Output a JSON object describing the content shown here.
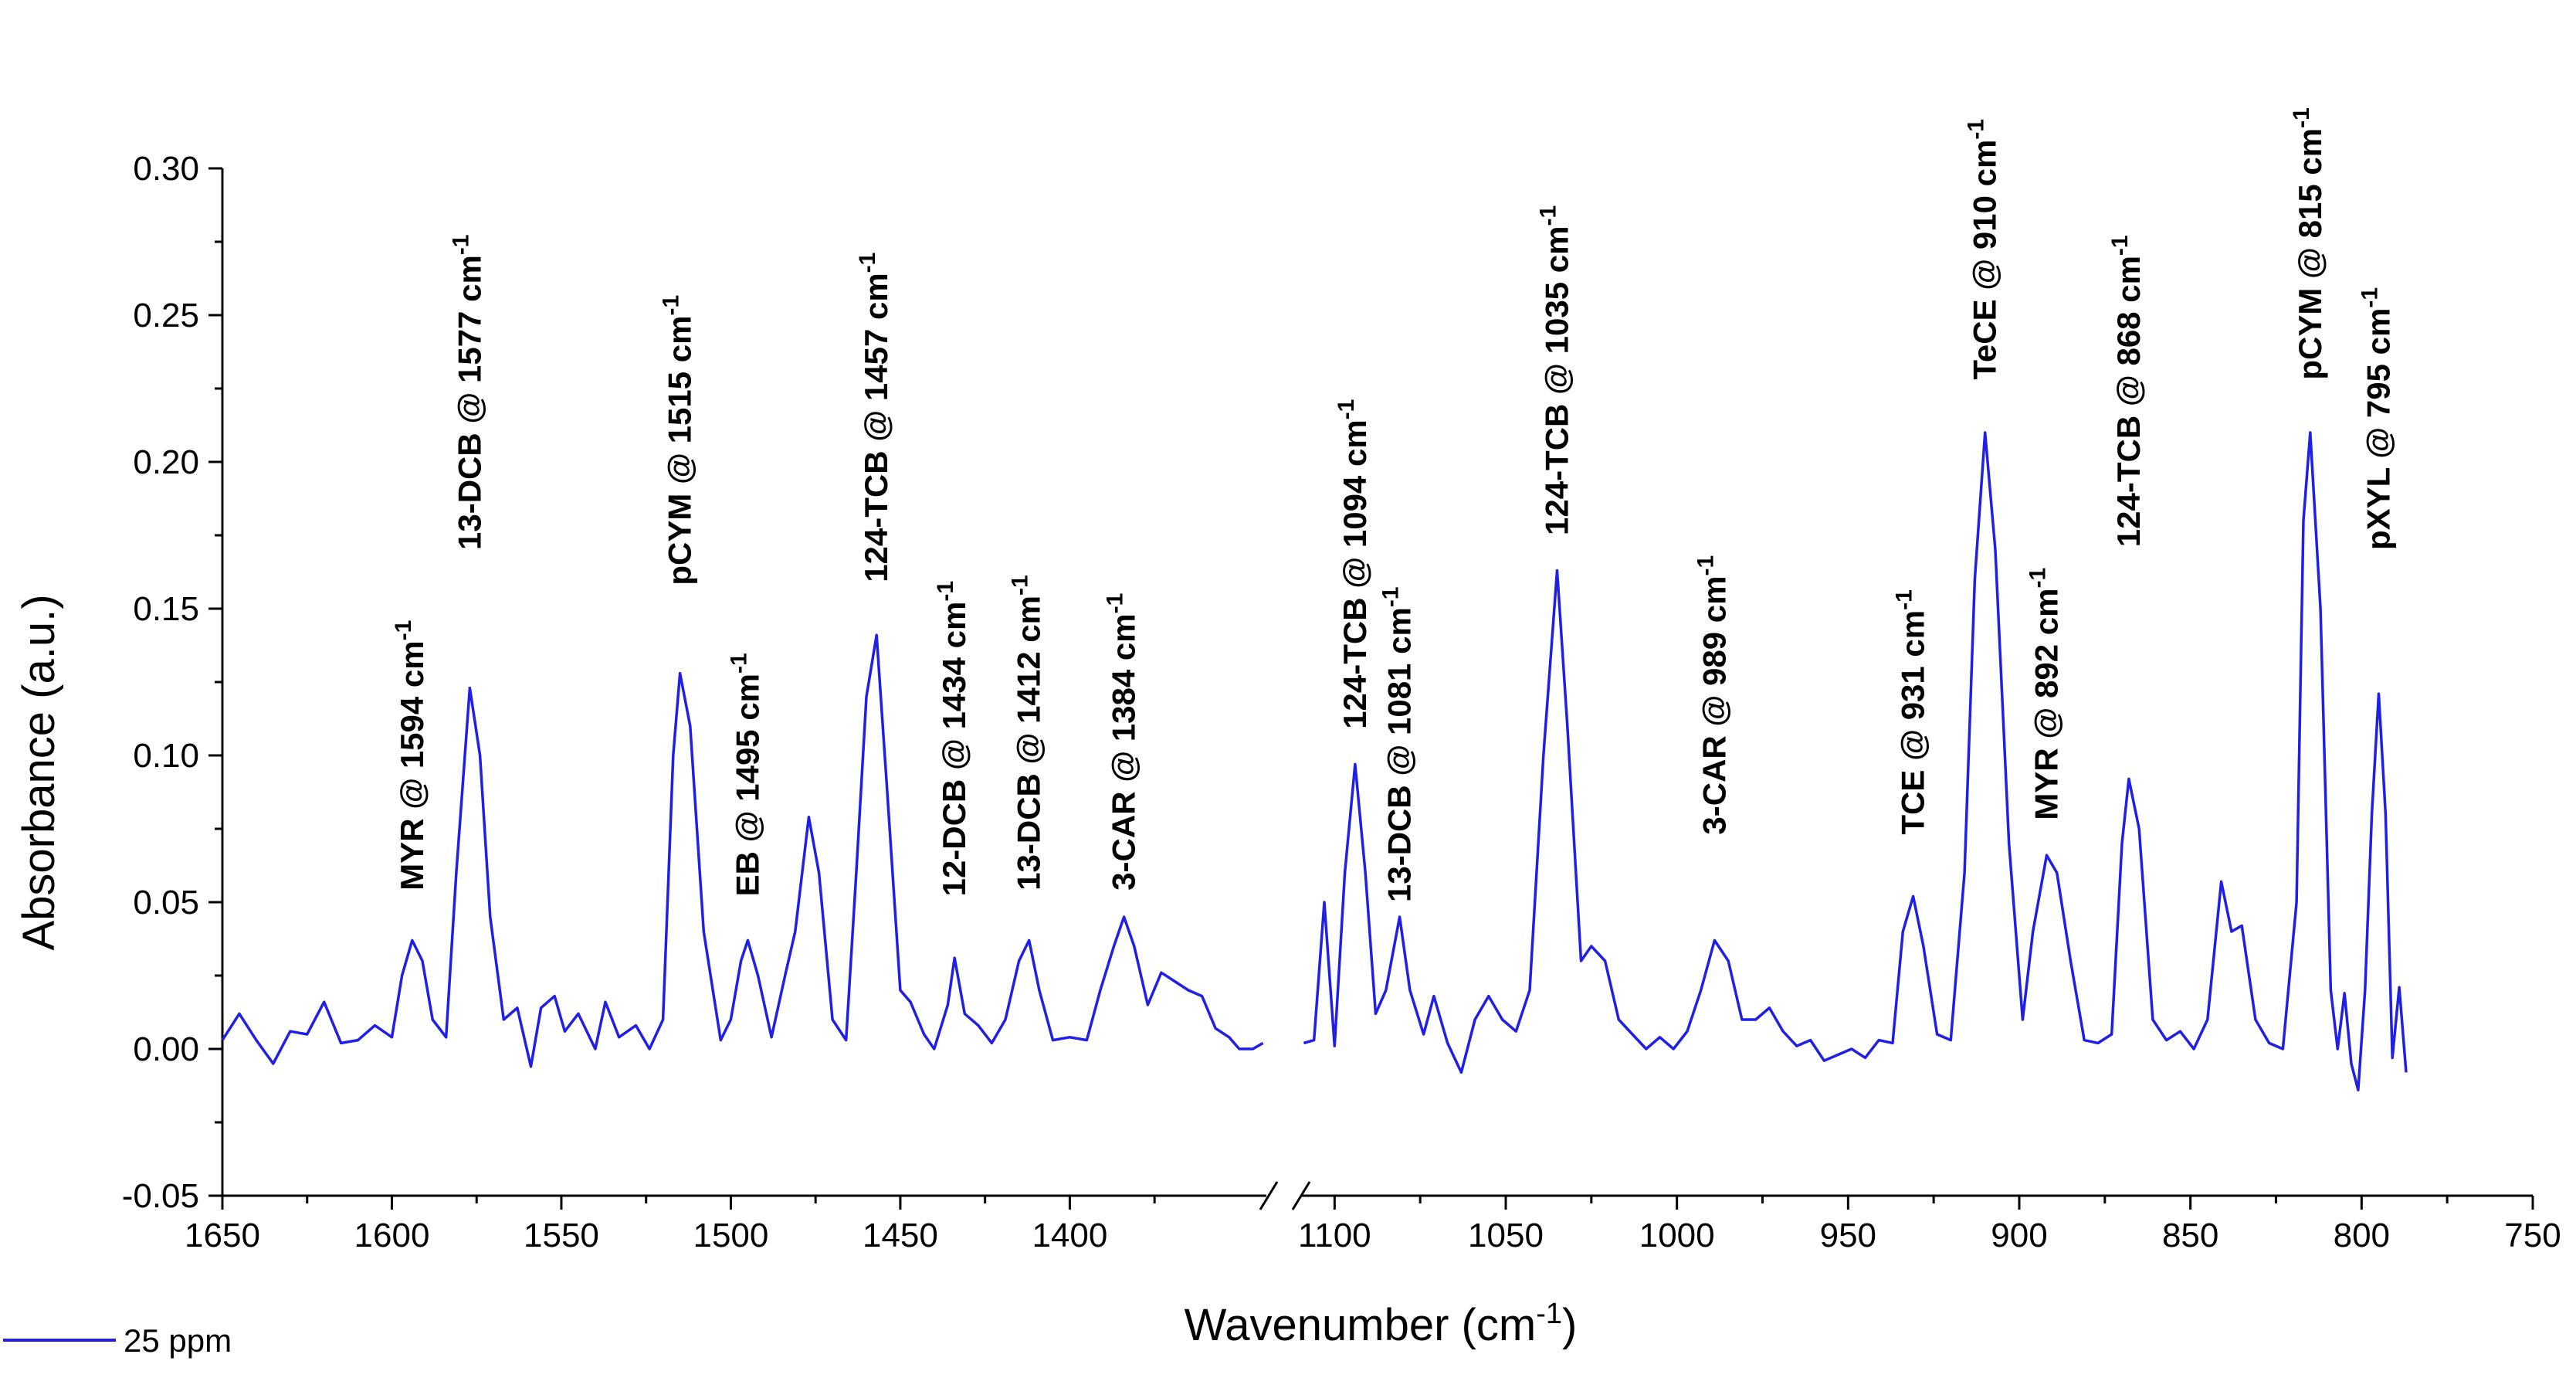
{
  "chart_data": {
    "type": "line",
    "title": "",
    "xlabel": "Wavenumber (cm",
    "xlabel_sup": "-1",
    "xlabel_end": ")",
    "ylabel": "Absorbance (a.u.)",
    "ylim": [
      -0.05,
      0.3
    ],
    "y_ticks": [
      "-0.05",
      "0.00",
      "0.05",
      "0.10",
      "0.15",
      "0.20",
      "0.25",
      "0.30"
    ],
    "y_tick_values": [
      -0.05,
      0.0,
      0.05,
      0.1,
      0.15,
      0.2,
      0.25,
      0.3
    ],
    "x_axis_broken": true,
    "x_segments": [
      {
        "range": [
          1650,
          1342
        ],
        "ticks": [
          "1650",
          "1600",
          "1550",
          "1500",
          "1450",
          "1400"
        ],
        "tick_values": [
          1650,
          1600,
          1550,
          1500,
          1450,
          1400
        ]
      },
      {
        "range": [
          1110,
          750
        ],
        "ticks": [
          "1100",
          "1050",
          "1000",
          "950",
          "900",
          "850",
          "800",
          "750"
        ],
        "tick_values": [
          1100,
          1050,
          1000,
          950,
          900,
          850,
          800,
          750
        ]
      }
    ],
    "legend_position": "bottom-left",
    "series": [
      {
        "name": "25 ppm",
        "color": "#1f1fe6",
        "segments": [
          [
            [
              1650,
              0.003
            ],
            [
              1645,
              0.012
            ],
            [
              1640,
              0.003
            ],
            [
              1635,
              -0.005
            ],
            [
              1630,
              0.006
            ],
            [
              1625,
              0.005
            ],
            [
              1620,
              0.016
            ],
            [
              1615,
              0.002
            ],
            [
              1610,
              0.003
            ],
            [
              1605,
              0.008
            ],
            [
              1600,
              0.004
            ],
            [
              1597,
              0.025
            ],
            [
              1594,
              0.037
            ],
            [
              1591,
              0.03
            ],
            [
              1588,
              0.01
            ],
            [
              1584,
              0.004
            ],
            [
              1581,
              0.06
            ],
            [
              1577,
              0.123
            ],
            [
              1574,
              0.1
            ],
            [
              1571,
              0.045
            ],
            [
              1567,
              0.01
            ],
            [
              1563,
              0.014
            ],
            [
              1559,
              -0.006
            ],
            [
              1556,
              0.014
            ],
            [
              1552,
              0.018
            ],
            [
              1549,
              0.006
            ],
            [
              1545,
              0.012
            ],
            [
              1540,
              0.0
            ],
            [
              1537,
              0.016
            ],
            [
              1533,
              0.004
            ],
            [
              1528,
              0.008
            ],
            [
              1524,
              0.0
            ],
            [
              1520,
              0.01
            ],
            [
              1517,
              0.1
            ],
            [
              1515,
              0.128
            ],
            [
              1512,
              0.11
            ],
            [
              1508,
              0.04
            ],
            [
              1503,
              0.003
            ],
            [
              1500,
              0.01
            ],
            [
              1497,
              0.03
            ],
            [
              1495,
              0.037
            ],
            [
              1492,
              0.025
            ],
            [
              1488,
              0.004
            ],
            [
              1484,
              0.025
            ],
            [
              1481,
              0.04
            ],
            [
              1477,
              0.079
            ],
            [
              1474,
              0.06
            ],
            [
              1470,
              0.01
            ],
            [
              1466,
              0.003
            ],
            [
              1463,
              0.06
            ],
            [
              1460,
              0.12
            ],
            [
              1457,
              0.141
            ],
            [
              1454,
              0.09
            ],
            [
              1450,
              0.02
            ],
            [
              1447,
              0.016
            ],
            [
              1443,
              0.005
            ],
            [
              1440,
              0.0
            ],
            [
              1436,
              0.015
            ],
            [
              1434,
              0.031
            ],
            [
              1431,
              0.012
            ],
            [
              1427,
              0.008
            ],
            [
              1423,
              0.002
            ],
            [
              1419,
              0.01
            ],
            [
              1415,
              0.03
            ],
            [
              1412,
              0.037
            ],
            [
              1409,
              0.02
            ],
            [
              1405,
              0.003
            ],
            [
              1400,
              0.004
            ],
            [
              1395,
              0.003
            ],
            [
              1391,
              0.02
            ],
            [
              1387,
              0.035
            ],
            [
              1384,
              0.045
            ],
            [
              1381,
              0.035
            ],
            [
              1377,
              0.015
            ],
            [
              1373,
              0.026
            ],
            [
              1369,
              0.023
            ],
            [
              1365,
              0.02
            ],
            [
              1361,
              0.018
            ],
            [
              1357,
              0.007
            ],
            [
              1353,
              0.004
            ],
            [
              1350,
              0.0
            ],
            [
              1346,
              0.0
            ],
            [
              1343,
              0.002
            ]
          ],
          [
            [
              1109,
              0.002
            ],
            [
              1106,
              0.003
            ],
            [
              1103,
              0.05
            ],
            [
              1100,
              0.001
            ],
            [
              1097,
              0.06
            ],
            [
              1094,
              0.097
            ],
            [
              1091,
              0.06
            ],
            [
              1088,
              0.012
            ],
            [
              1085,
              0.02
            ],
            [
              1081,
              0.045
            ],
            [
              1078,
              0.02
            ],
            [
              1074,
              0.005
            ],
            [
              1071,
              0.018
            ],
            [
              1067,
              0.002
            ],
            [
              1063,
              -0.008
            ],
            [
              1059,
              0.01
            ],
            [
              1055,
              0.018
            ],
            [
              1051,
              0.01
            ],
            [
              1047,
              0.006
            ],
            [
              1043,
              0.02
            ],
            [
              1039,
              0.1
            ],
            [
              1035,
              0.163
            ],
            [
              1032,
              0.11
            ],
            [
              1028,
              0.03
            ],
            [
              1025,
              0.035
            ],
            [
              1021,
              0.03
            ],
            [
              1017,
              0.01
            ],
            [
              1013,
              0.005
            ],
            [
              1009,
              0.0
            ],
            [
              1005,
              0.004
            ],
            [
              1001,
              0.0
            ],
            [
              997,
              0.006
            ],
            [
              993,
              0.02
            ],
            [
              989,
              0.037
            ],
            [
              985,
              0.03
            ],
            [
              981,
              0.01
            ],
            [
              977,
              0.01
            ],
            [
              973,
              0.014
            ],
            [
              969,
              0.006
            ],
            [
              965,
              0.001
            ],
            [
              961,
              0.003
            ],
            [
              957,
              -0.004
            ],
            [
              953,
              -0.002
            ],
            [
              949,
              0.0
            ],
            [
              945,
              -0.003
            ],
            [
              941,
              0.003
            ],
            [
              937,
              0.002
            ],
            [
              934,
              0.04
            ],
            [
              931,
              0.052
            ],
            [
              928,
              0.035
            ],
            [
              924,
              0.005
            ],
            [
              920,
              0.003
            ],
            [
              916,
              0.06
            ],
            [
              913,
              0.16
            ],
            [
              910,
              0.21
            ],
            [
              907,
              0.17
            ],
            [
              903,
              0.07
            ],
            [
              899,
              0.01
            ],
            [
              896,
              0.04
            ],
            [
              892,
              0.066
            ],
            [
              889,
              0.06
            ],
            [
              885,
              0.03
            ],
            [
              881,
              0.003
            ],
            [
              877,
              0.002
            ],
            [
              873,
              0.005
            ],
            [
              870,
              0.07
            ],
            [
              868,
              0.092
            ],
            [
              865,
              0.075
            ],
            [
              861,
              0.01
            ],
            [
              857,
              0.003
            ],
            [
              853,
              0.006
            ],
            [
              849,
              0.0
            ],
            [
              845,
              0.01
            ],
            [
              841,
              0.057
            ],
            [
              838,
              0.04
            ],
            [
              835,
              0.042
            ],
            [
              831,
              0.01
            ],
            [
              827,
              0.002
            ],
            [
              823,
              0.0
            ],
            [
              819,
              0.05
            ],
            [
              817,
              0.18
            ],
            [
              815,
              0.21
            ],
            [
              812,
              0.15
            ],
            [
              809,
              0.02
            ],
            [
              807,
              0.0
            ],
            [
              805,
              0.019
            ],
            [
              803,
              -0.005
            ],
            [
              801,
              -0.014
            ],
            [
              799,
              0.02
            ],
            [
              797,
              0.08
            ],
            [
              795,
              0.121
            ],
            [
              793,
              0.08
            ],
            [
              791,
              -0.003
            ],
            [
              789,
              0.021
            ],
            [
              787,
              -0.008
            ]
          ]
        ]
      }
    ],
    "annotations": [
      {
        "text": "MYR @ 1594 cm",
        "sup": "-1",
        "x": 1594,
        "y": 0.054,
        "segment": 0
      },
      {
        "text": "13-DCB @ 1577 cm",
        "sup": "-1",
        "x": 1577,
        "y": 0.17,
        "segment": 0
      },
      {
        "text": "pCYM @ 1515 cm",
        "sup": "-1",
        "x": 1515,
        "y": 0.158,
        "segment": 0
      },
      {
        "text": "EB @ 1495 cm",
        "sup": "-1",
        "x": 1495,
        "y": 0.052,
        "segment": 0
      },
      {
        "text": "124-TCB @ 1457 cm",
        "sup": "-1",
        "x": 1457,
        "y": 0.159,
        "segment": 0
      },
      {
        "text": "12-DCB @ 1434 cm",
        "sup": "-1",
        "x": 1434,
        "y": 0.052,
        "segment": 0
      },
      {
        "text": "13-DCB @ 1412 cm",
        "sup": "-1",
        "x": 1412,
        "y": 0.054,
        "segment": 0
      },
      {
        "text": "3-CAR @ 1384 cm",
        "sup": "-1",
        "x": 1384,
        "y": 0.054,
        "segment": 0
      },
      {
        "text": "124-TCB @ 1094 cm",
        "sup": "-1",
        "x": 1094,
        "y": 0.109,
        "segment": 1
      },
      {
        "text": "13-DCB @ 1081 cm",
        "sup": "-1",
        "x": 1081,
        "y": 0.05,
        "segment": 1
      },
      {
        "text": "124-TCB @ 1035 cm",
        "sup": "-1",
        "x": 1035,
        "y": 0.175,
        "segment": 1
      },
      {
        "text": "3-CAR @ 989 cm",
        "sup": "-1",
        "x": 989,
        "y": 0.073,
        "segment": 1
      },
      {
        "text": "TCE @ 931 cm",
        "sup": "-1",
        "x": 931,
        "y": 0.073,
        "segment": 1
      },
      {
        "text": "TeCE @ 910 cm",
        "sup": "-1",
        "x": 910,
        "y": 0.228,
        "segment": 1
      },
      {
        "text": "MYR @ 892 cm",
        "sup": "-1",
        "x": 892,
        "y": 0.078,
        "segment": 1
      },
      {
        "text": "124-TCB @ 868 cm",
        "sup": "-1",
        "x": 868,
        "y": 0.171,
        "segment": 1
      },
      {
        "text": "pCYM @ 815 cm",
        "sup": "-1",
        "x": 815,
        "y": 0.228,
        "segment": 1
      },
      {
        "text": "pXYL @ 795 cm",
        "sup": "-1",
        "x": 795,
        "y": 0.17,
        "segment": 1
      }
    ]
  }
}
